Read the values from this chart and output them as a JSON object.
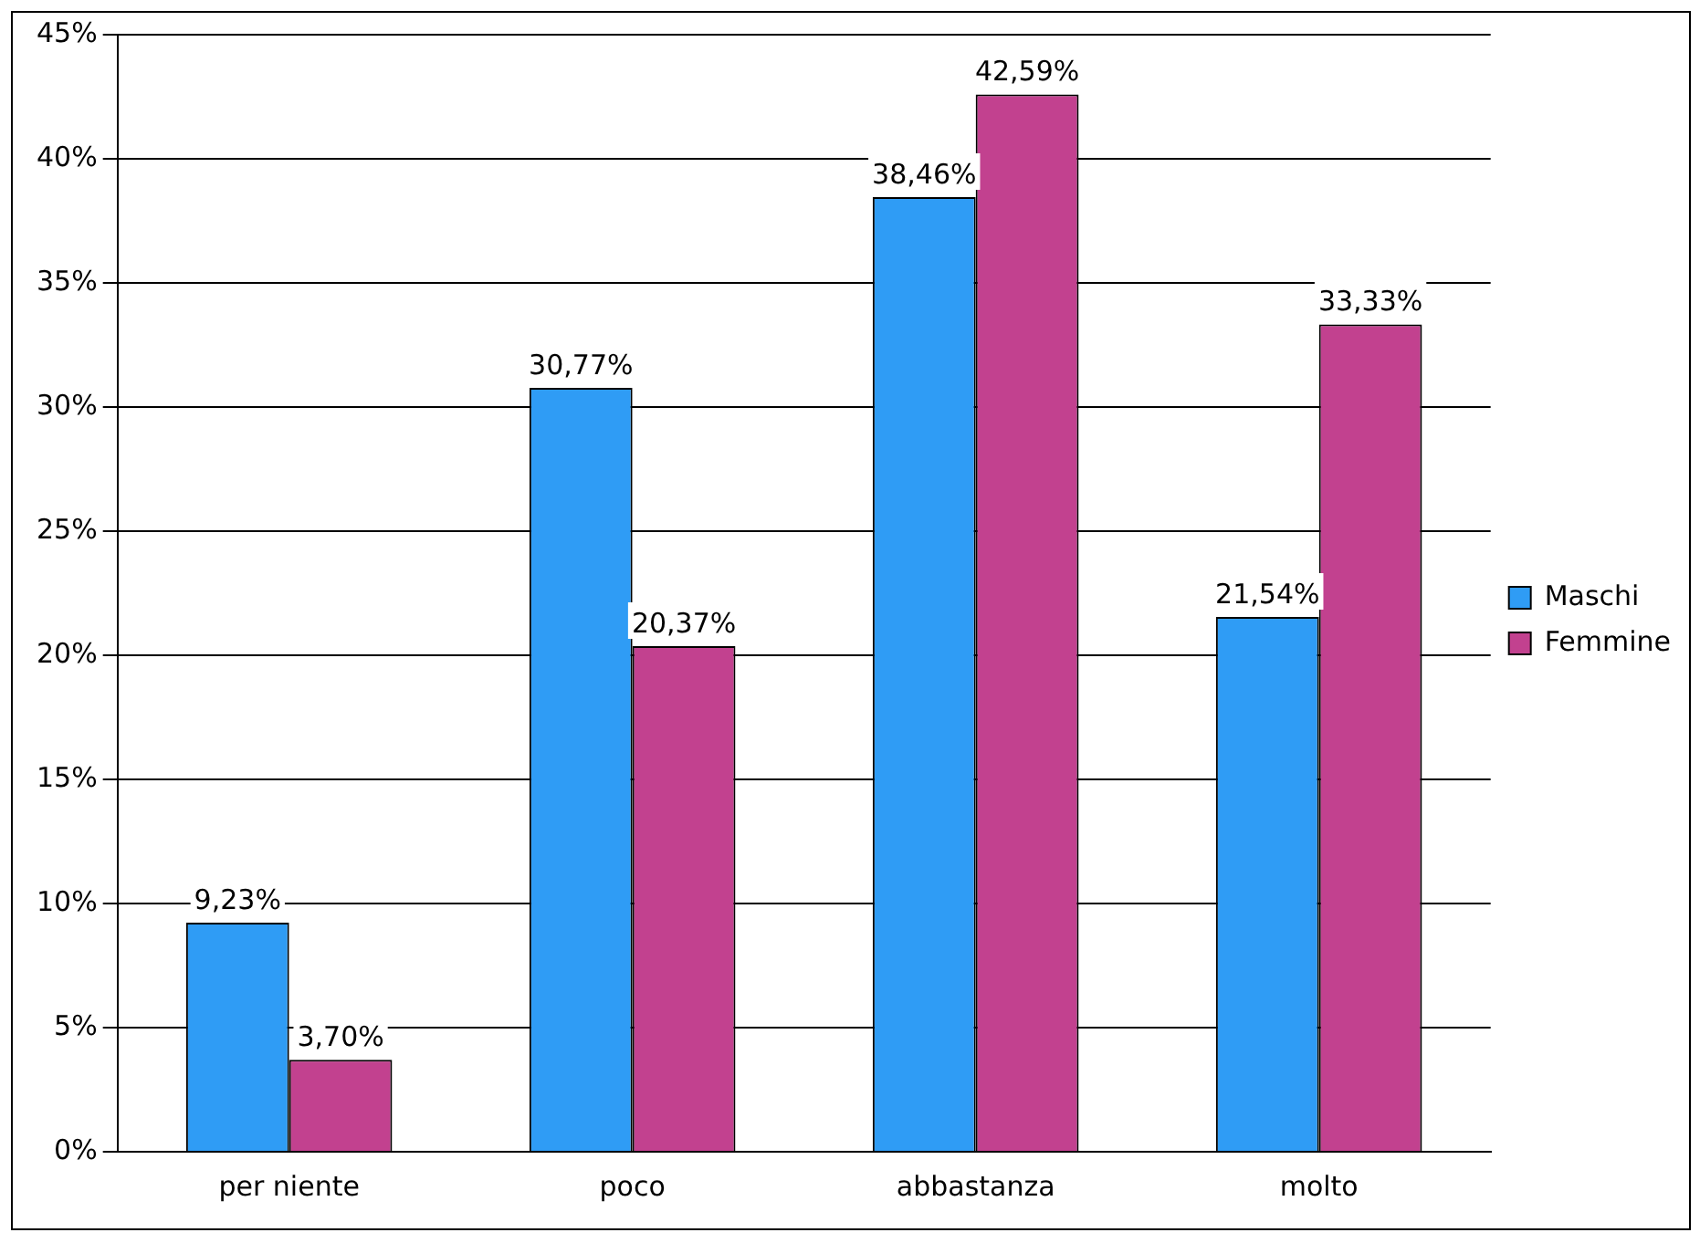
{
  "chart_data": {
    "type": "bar",
    "categories": [
      "per niente",
      "poco",
      "abbastanza",
      "molto"
    ],
    "series": [
      {
        "name": "Maschi",
        "color": "#2f9cf5",
        "values": [
          9.23,
          30.77,
          38.46,
          21.54
        ],
        "value_labels": [
          "9,23%",
          "30,77%",
          "38,46%",
          "21,54%"
        ]
      },
      {
        "name": "Femmine",
        "color": "#c2418f",
        "values": [
          3.7,
          20.37,
          42.59,
          33.33
        ],
        "value_labels": [
          "3,70%",
          "20,37%",
          "42,59%",
          "33,33%"
        ]
      }
    ],
    "ylim": [
      0,
      45
    ],
    "yticks": [
      {
        "value": 0,
        "label": "0%"
      },
      {
        "value": 5,
        "label": "5%"
      },
      {
        "value": 10,
        "label": "10%"
      },
      {
        "value": 15,
        "label": "15%"
      },
      {
        "value": 20,
        "label": "20%"
      },
      {
        "value": 25,
        "label": "25%"
      },
      {
        "value": 30,
        "label": "30%"
      },
      {
        "value": 35,
        "label": "35%"
      },
      {
        "value": 40,
        "label": "40%"
      },
      {
        "value": 45,
        "label": "45%"
      }
    ],
    "grid": "y",
    "legend": "right"
  }
}
